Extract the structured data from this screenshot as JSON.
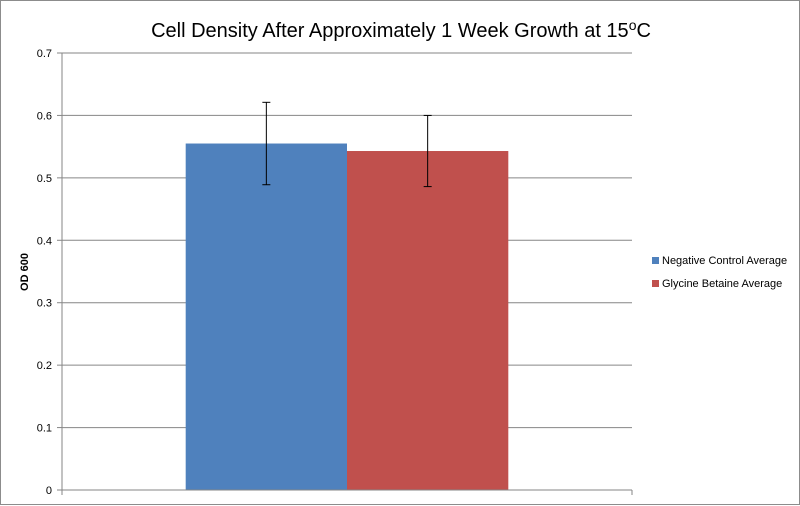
{
  "chart_data": {
    "type": "bar",
    "title": "Cell Density After Approximately 1 Week Growth at 15",
    "title_superscript": "o",
    "title_suffix": "C",
    "xlabel": "",
    "ylabel": "OD 600",
    "ylim": [
      0,
      0.7
    ],
    "y_ticks": [
      "0",
      "0.1",
      "0.2",
      "0.3",
      "0.4",
      "0.5",
      "0.6",
      "0.7"
    ],
    "grid": true,
    "legend_position": "right",
    "categories": [
      ""
    ],
    "series": [
      {
        "name": "Negative Control Average",
        "values": [
          0.555
        ],
        "error": [
          0.066
        ],
        "color": "#4f81bd"
      },
      {
        "name": "Glycine Betaine Average",
        "values": [
          0.543
        ],
        "error": [
          0.057
        ],
        "color": "#c0504d"
      }
    ]
  }
}
